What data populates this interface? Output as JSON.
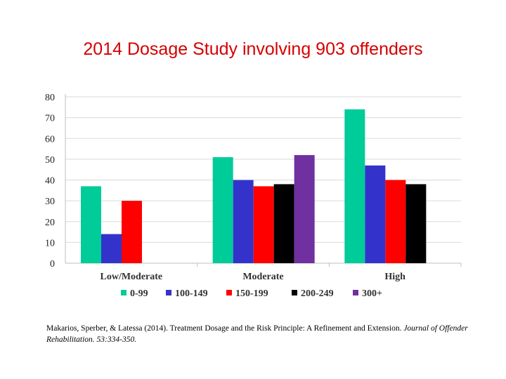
{
  "title": "2014 Dosage  Study involving 903 offenders",
  "chart_data": {
    "type": "bar",
    "title": "2014 Dosage  Study involving 903 offenders",
    "xlabel": "",
    "ylabel": "",
    "ylim": [
      0,
      80
    ],
    "yticks": [
      0,
      10,
      20,
      30,
      40,
      50,
      60,
      70,
      80
    ],
    "grid": true,
    "legend_position": "bottom",
    "categories": [
      "Low/Moderate",
      "Moderate",
      "High"
    ],
    "series": [
      {
        "name": "0-99",
        "color": "#00cc99",
        "values": [
          37,
          51,
          74
        ]
      },
      {
        "name": "100-149",
        "color": "#3333cc",
        "values": [
          14,
          40,
          47
        ]
      },
      {
        "name": "150-199",
        "color": "#ff0000",
        "values": [
          30,
          37,
          40
        ]
      },
      {
        "name": "200-249",
        "color": "#000000",
        "values": [
          null,
          38,
          38
        ]
      },
      {
        "name": "300+",
        "color": "#7030a0",
        "values": [
          null,
          52,
          null
        ]
      }
    ]
  },
  "citation": {
    "text": "Makarios, Sperber, & Latessa (2014).  Treatment Dosage and the Risk Principle:  A Refinement and Extension. ",
    "journal": "Journal of Offender Rehabilitation.  53:334-350."
  }
}
